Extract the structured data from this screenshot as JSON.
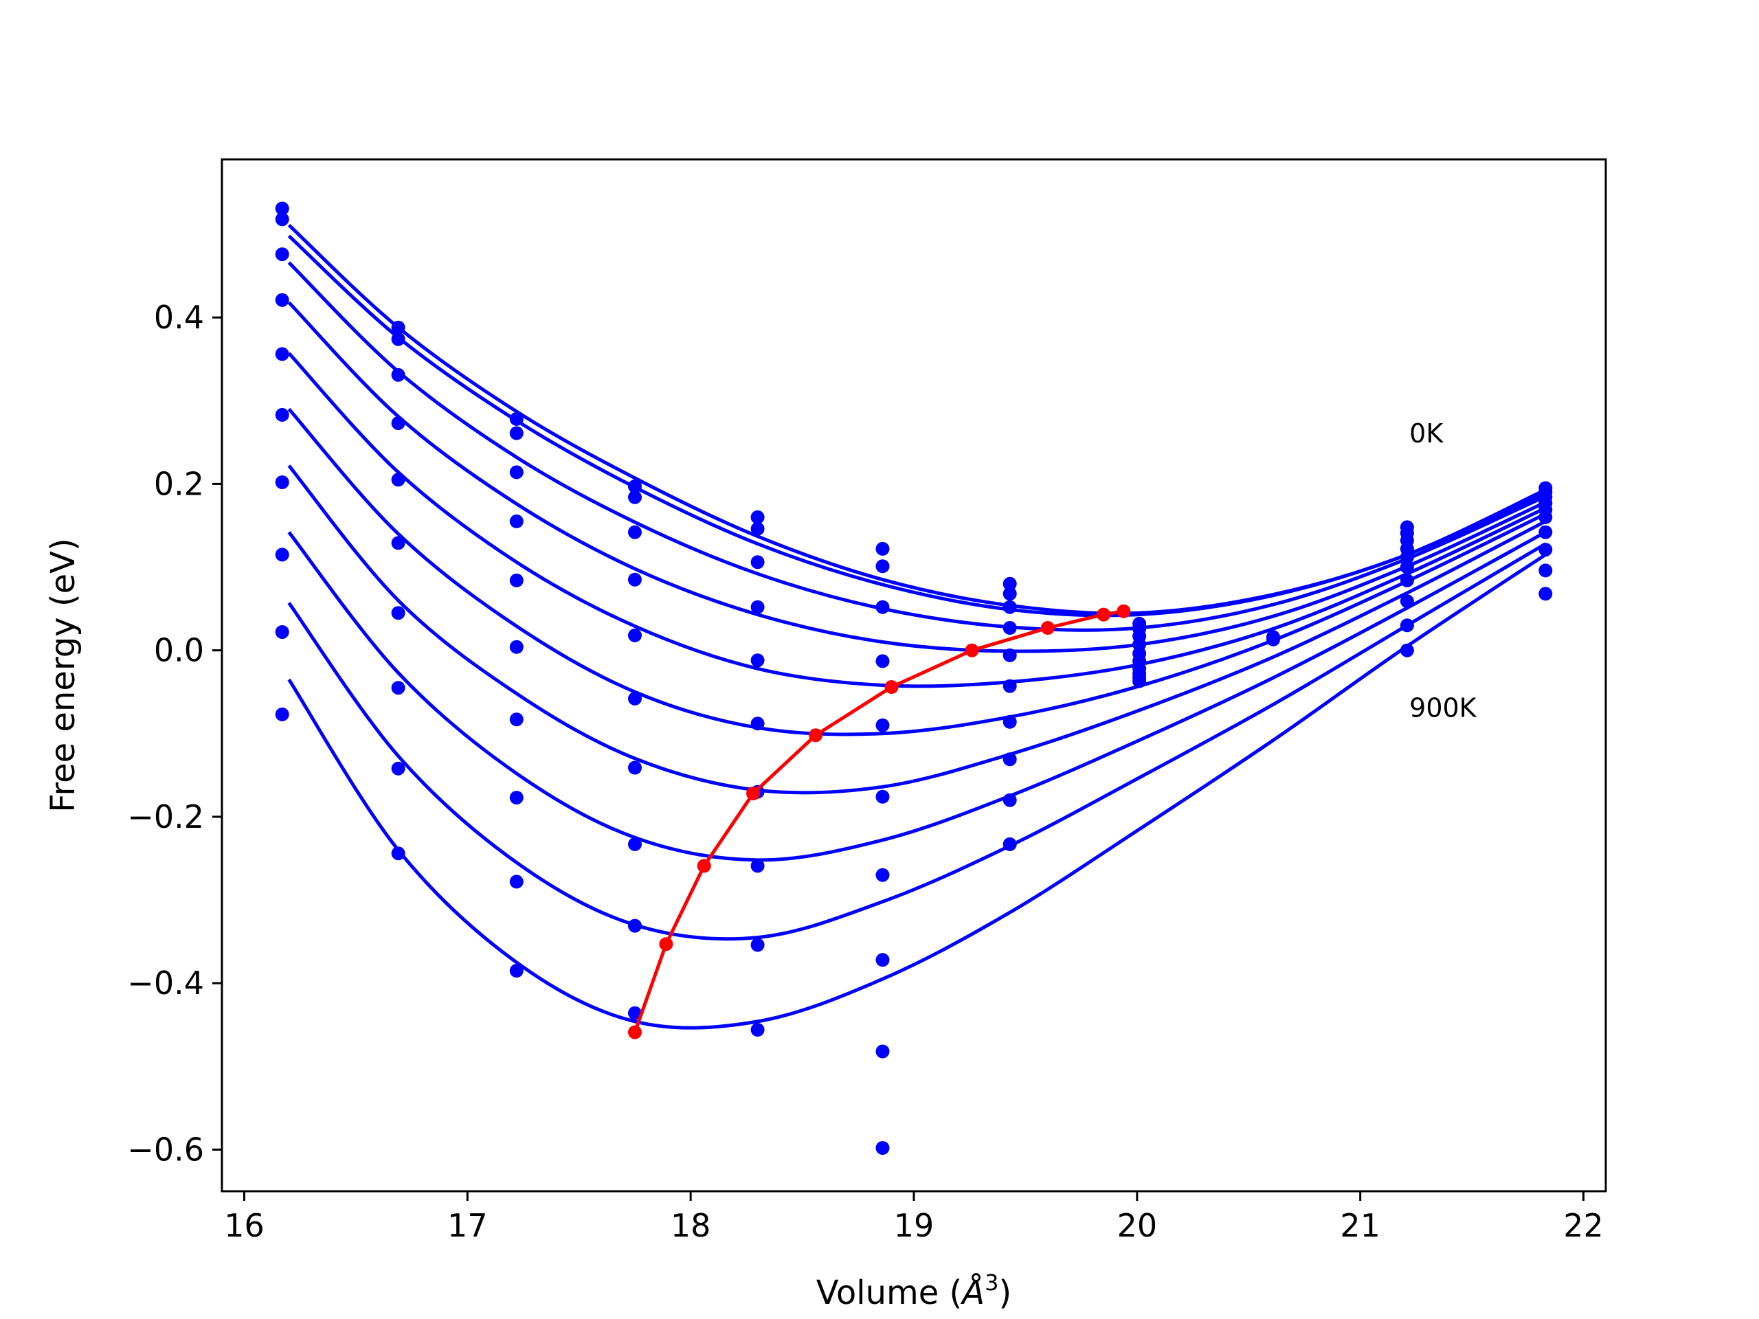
{
  "chart_data": {
    "type": "line",
    "xlabel": "Volume (Å³)",
    "xlabel_parts": {
      "text": "Volume (",
      "unit": "Å",
      "sup": "3",
      "close": ")"
    },
    "ylabel": "Free energy (eV)",
    "xlim": [
      15.9,
      22.1
    ],
    "ylim": [
      -0.65,
      0.59
    ],
    "xticks": [
      16,
      17,
      18,
      19,
      20,
      21,
      22
    ],
    "xtick_labels": [
      "16",
      "17",
      "18",
      "19",
      "20",
      "21",
      "22"
    ],
    "yticks": [
      -0.6,
      -0.4,
      -0.2,
      0.0,
      0.2,
      0.4
    ],
    "ytick_labels": [
      "−0.6",
      "−0.4",
      "−0.2",
      "0.0",
      "0.2",
      "0.4"
    ],
    "grid": false,
    "legend": "none",
    "annotations": [
      {
        "text": "0K",
        "x": 21.22,
        "y": 0.25
      },
      {
        "text": "900K",
        "x": 21.22,
        "y": -0.08
      }
    ],
    "colors": {
      "curves": "#0000ff",
      "points": "#0000ff",
      "minima": "#ff0000"
    },
    "volumes": [
      16.17,
      16.69,
      17.22,
      17.75,
      18.3,
      18.86,
      19.43,
      20.01,
      20.61,
      21.21,
      21.83
    ],
    "points": [
      [
        16.17,
        0.531
      ],
      [
        16.17,
        0.518
      ],
      [
        16.17,
        0.476
      ],
      [
        16.17,
        0.421
      ],
      [
        16.17,
        0.356
      ],
      [
        16.17,
        0.283
      ],
      [
        16.17,
        0.202
      ],
      [
        16.17,
        0.115
      ],
      [
        16.17,
        0.022
      ],
      [
        16.17,
        -0.077
      ],
      [
        16.69,
        0.388
      ],
      [
        16.69,
        0.374
      ],
      [
        16.69,
        0.331
      ],
      [
        16.69,
        0.273
      ],
      [
        16.69,
        0.205
      ],
      [
        16.69,
        0.129
      ],
      [
        16.69,
        0.045
      ],
      [
        16.69,
        -0.045
      ],
      [
        16.69,
        -0.142
      ],
      [
        16.69,
        -0.244
      ],
      [
        17.22,
        0.278
      ],
      [
        17.22,
        0.261
      ],
      [
        17.22,
        0.214
      ],
      [
        17.22,
        0.155
      ],
      [
        17.22,
        0.084
      ],
      [
        17.22,
        0.004
      ],
      [
        17.22,
        -0.083
      ],
      [
        17.22,
        -0.177
      ],
      [
        17.22,
        -0.278
      ],
      [
        17.22,
        -0.385
      ],
      [
        17.75,
        0.197
      ],
      [
        17.75,
        0.184
      ],
      [
        17.75,
        0.142
      ],
      [
        17.75,
        0.085
      ],
      [
        17.75,
        0.018
      ],
      [
        17.75,
        -0.058
      ],
      [
        17.75,
        -0.141
      ],
      [
        17.75,
        -0.233
      ],
      [
        17.75,
        -0.331
      ],
      [
        17.75,
        -0.436
      ],
      [
        18.3,
        0.16
      ],
      [
        18.3,
        0.146
      ],
      [
        18.3,
        0.106
      ],
      [
        18.3,
        0.052
      ],
      [
        18.3,
        -0.012
      ],
      [
        18.3,
        -0.088
      ],
      [
        18.3,
        -0.17
      ],
      [
        18.3,
        -0.259
      ],
      [
        18.3,
        -0.354
      ],
      [
        18.3,
        -0.456
      ],
      [
        18.86,
        0.122
      ],
      [
        18.86,
        0.101
      ],
      [
        18.86,
        0.052
      ],
      [
        18.86,
        -0.013
      ],
      [
        18.86,
        -0.09
      ],
      [
        18.86,
        -0.176
      ],
      [
        18.86,
        -0.27
      ],
      [
        18.86,
        -0.372
      ],
      [
        18.86,
        -0.482
      ],
      [
        18.86,
        -0.598
      ],
      [
        19.43,
        0.08
      ],
      [
        19.43,
        0.068
      ],
      [
        19.43,
        0.052
      ],
      [
        19.43,
        0.027
      ],
      [
        19.43,
        -0.006
      ],
      [
        19.43,
        -0.043
      ],
      [
        19.43,
        -0.086
      ],
      [
        19.43,
        -0.131
      ],
      [
        19.43,
        -0.18
      ],
      [
        19.43,
        -0.233
      ],
      [
        20.01,
        0.032
      ],
      [
        20.01,
        0.026
      ],
      [
        20.01,
        0.017
      ],
      [
        20.01,
        0.007
      ],
      [
        20.01,
        -0.004
      ],
      [
        20.01,
        -0.013
      ],
      [
        20.01,
        -0.022
      ],
      [
        20.01,
        -0.028
      ],
      [
        20.01,
        -0.033
      ],
      [
        20.01,
        -0.037
      ],
      [
        20.61,
        0.016
      ],
      [
        20.61,
        0.013
      ],
      [
        21.21,
        0.148
      ],
      [
        21.21,
        0.141
      ],
      [
        21.21,
        0.132
      ],
      [
        21.21,
        0.122
      ],
      [
        21.21,
        0.112
      ],
      [
        21.21,
        0.1
      ],
      [
        21.21,
        0.084
      ],
      [
        21.21,
        0.059
      ],
      [
        21.21,
        0.03
      ],
      [
        21.21,
        0.0
      ],
      [
        21.83,
        0.195
      ],
      [
        21.83,
        0.19
      ],
      [
        21.83,
        0.184
      ],
      [
        21.83,
        0.177
      ],
      [
        21.83,
        0.169
      ],
      [
        21.83,
        0.16
      ],
      [
        21.83,
        0.142
      ],
      [
        21.83,
        0.121
      ],
      [
        21.83,
        0.096
      ],
      [
        21.83,
        0.068
      ]
    ],
    "series": [
      {
        "values": [
          [
            16.2,
            0.511
          ],
          [
            16.69,
            0.388
          ],
          [
            17.22,
            0.287
          ],
          [
            17.75,
            0.207
          ],
          [
            18.3,
            0.137
          ],
          [
            18.86,
            0.085
          ],
          [
            19.43,
            0.054
          ],
          [
            20.01,
            0.045
          ],
          [
            20.61,
            0.067
          ],
          [
            21.21,
            0.115
          ],
          [
            21.83,
            0.193
          ]
        ]
      },
      {
        "values": [
          [
            16.2,
            0.498
          ],
          [
            16.69,
            0.376
          ],
          [
            17.22,
            0.276
          ],
          [
            17.75,
            0.196
          ],
          [
            18.3,
            0.128
          ],
          [
            18.86,
            0.079
          ],
          [
            19.43,
            0.049
          ],
          [
            20.01,
            0.043
          ],
          [
            20.61,
            0.066
          ],
          [
            21.21,
            0.115
          ],
          [
            21.83,
            0.189
          ]
        ]
      },
      {
        "values": [
          [
            16.2,
            0.466
          ],
          [
            16.69,
            0.335
          ],
          [
            17.22,
            0.232
          ],
          [
            17.75,
            0.154
          ],
          [
            18.3,
            0.092
          ],
          [
            18.86,
            0.05
          ],
          [
            19.43,
            0.028
          ],
          [
            20.01,
            0.027
          ],
          [
            20.61,
            0.055
          ],
          [
            21.21,
            0.11
          ],
          [
            21.83,
            0.185
          ]
        ]
      },
      {
        "values": [
          [
            16.2,
            0.418
          ],
          [
            16.69,
            0.281
          ],
          [
            17.22,
            0.176
          ],
          [
            17.75,
            0.098
          ],
          [
            18.3,
            0.043
          ],
          [
            18.86,
            0.01
          ],
          [
            19.43,
            -0.001
          ],
          [
            20.01,
            0.007
          ],
          [
            20.61,
            0.041
          ],
          [
            21.21,
            0.101
          ],
          [
            21.83,
            0.178
          ]
        ]
      },
      {
        "values": [
          [
            16.2,
            0.357
          ],
          [
            16.69,
            0.214
          ],
          [
            17.22,
            0.106
          ],
          [
            17.75,
            0.029
          ],
          [
            18.3,
            -0.022
          ],
          [
            18.86,
            -0.042
          ],
          [
            19.43,
            -0.038
          ],
          [
            20.01,
            -0.017
          ],
          [
            20.61,
            0.026
          ],
          [
            21.21,
            0.092
          ],
          [
            21.83,
            0.171
          ]
        ]
      },
      {
        "values": [
          [
            16.2,
            0.29
          ],
          [
            16.69,
            0.14
          ],
          [
            17.22,
            0.029
          ],
          [
            17.75,
            -0.05
          ],
          [
            18.3,
            -0.093
          ],
          [
            18.86,
            -0.1
          ],
          [
            19.43,
            -0.08
          ],
          [
            20.01,
            -0.043
          ],
          [
            20.61,
            0.012
          ],
          [
            21.21,
            0.083
          ],
          [
            21.83,
            0.164
          ]
        ]
      },
      {
        "values": [
          [
            16.2,
            0.222
          ],
          [
            16.69,
            0.06
          ],
          [
            17.22,
            -0.052
          ],
          [
            17.75,
            -0.13
          ],
          [
            18.3,
            -0.168
          ],
          [
            18.86,
            -0.164
          ],
          [
            19.43,
            -0.125
          ],
          [
            20.01,
            -0.072
          ],
          [
            20.61,
            -0.008
          ],
          [
            21.21,
            0.069
          ],
          [
            21.83,
            0.155
          ]
        ]
      },
      {
        "values": [
          [
            16.2,
            0.142
          ],
          [
            16.69,
            -0.027
          ],
          [
            17.22,
            -0.148
          ],
          [
            17.75,
            -0.225
          ],
          [
            18.3,
            -0.252
          ],
          [
            18.86,
            -0.228
          ],
          [
            19.43,
            -0.175
          ],
          [
            20.01,
            -0.108
          ],
          [
            20.61,
            -0.033
          ],
          [
            21.21,
            0.051
          ],
          [
            21.83,
            0.142
          ]
        ]
      },
      {
        "values": [
          [
            16.2,
            0.057
          ],
          [
            16.69,
            -0.127
          ],
          [
            17.22,
            -0.255
          ],
          [
            17.75,
            -0.33
          ],
          [
            18.3,
            -0.345
          ],
          [
            18.86,
            -0.302
          ],
          [
            19.43,
            -0.235
          ],
          [
            20.01,
            -0.153
          ],
          [
            20.61,
            -0.065
          ],
          [
            21.21,
            0.03
          ],
          [
            21.83,
            0.128
          ]
        ]
      },
      {
        "values": [
          [
            16.2,
            -0.035
          ],
          [
            16.69,
            -0.24
          ],
          [
            17.22,
            -0.375
          ],
          [
            17.75,
            -0.446
          ],
          [
            18.3,
            -0.446
          ],
          [
            18.86,
            -0.395
          ],
          [
            19.43,
            -0.315
          ],
          [
            20.01,
            -0.215
          ],
          [
            20.61,
            -0.108
          ],
          [
            21.21,
            0.005
          ],
          [
            21.83,
            0.115
          ]
        ]
      }
    ],
    "minima": [
      [
        19.94,
        0.047
      ],
      [
        19.85,
        0.043
      ],
      [
        19.6,
        0.027
      ],
      [
        19.26,
        0.0
      ],
      [
        18.9,
        -0.044
      ],
      [
        18.56,
        -0.102
      ],
      [
        18.28,
        -0.172
      ],
      [
        18.06,
        -0.259
      ],
      [
        17.89,
        -0.353
      ],
      [
        17.75,
        -0.459
      ]
    ]
  }
}
